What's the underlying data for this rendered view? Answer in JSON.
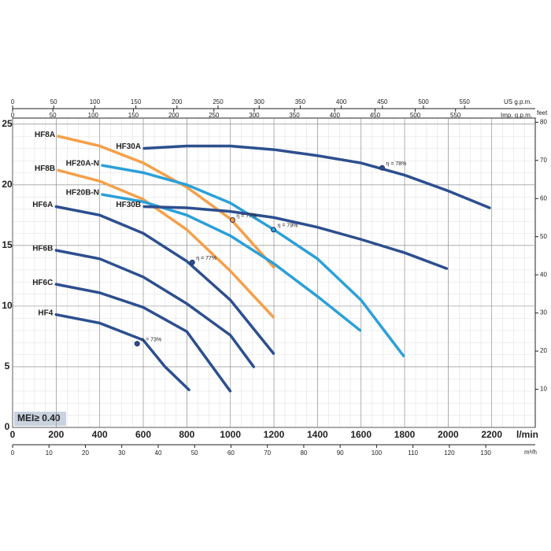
{
  "chart_data": {
    "type": "line",
    "x_label": "l/min",
    "xlim": [
      0,
      2400
    ],
    "xticks": [
      0,
      200,
      400,
      600,
      800,
      1000,
      1200,
      1400,
      1600,
      1800,
      2000,
      2200
    ],
    "ylim": [
      0,
      25.5
    ],
    "yticks": [
      0,
      5,
      10,
      15,
      20,
      25
    ],
    "y2_label": "feet",
    "y2lim": [
      0,
      81.1
    ],
    "y2ticks": [
      10,
      20,
      30,
      40,
      50,
      60,
      70,
      80
    ],
    "top_axes": [
      {
        "label": "US g.p.m.",
        "xlim": [
          0,
          636
        ],
        "xticks": [
          0,
          50,
          100,
          150,
          200,
          250,
          300,
          350,
          400,
          450,
          500,
          550
        ]
      },
      {
        "label": "Imp. g.p.m.",
        "xlim": [
          0,
          649
        ],
        "xticks": [
          0,
          50,
          100,
          150,
          200,
          250,
          300,
          350,
          400,
          450,
          500,
          550
        ]
      }
    ],
    "bottom_axis2": {
      "label": "m³/h",
      "xlim": [
        0,
        143.6
      ],
      "xticks": [
        0,
        10,
        20,
        30,
        40,
        50,
        60,
        70,
        80,
        90,
        100,
        110,
        120,
        130
      ]
    },
    "grid": true,
    "series": [
      {
        "name": "HF8A",
        "color": "#f4a04a",
        "x": [
          210,
          400,
          600,
          800,
          1000,
          1200
        ],
        "values": [
          24.0,
          23.2,
          21.8,
          19.8,
          17.2,
          13.2
        ]
      },
      {
        "name": "HF8B",
        "color": "#f4a04a",
        "x": [
          210,
          400,
          600,
          800,
          1000,
          1197
        ],
        "values": [
          21.2,
          20.3,
          18.8,
          16.3,
          12.9,
          9.1
        ]
      },
      {
        "name": "HF20A-N",
        "color": "#2ca0d8",
        "x": [
          412,
          600,
          800,
          1000,
          1200,
          1400,
          1600,
          1795
        ],
        "values": [
          21.6,
          21.0,
          20.0,
          18.5,
          16.3,
          13.9,
          10.5,
          5.9
        ]
      },
      {
        "name": "HF20B-N",
        "color": "#2ca0d8",
        "x": [
          412,
          600,
          800,
          1000,
          1200,
          1400,
          1596
        ],
        "values": [
          19.2,
          18.6,
          17.5,
          15.8,
          13.5,
          10.8,
          8.0
        ]
      },
      {
        "name": "HF30A",
        "color": "#2d4f8f",
        "x": [
          604,
          800,
          1000,
          1200,
          1400,
          1600,
          1800,
          2000,
          2190
        ],
        "values": [
          23.0,
          23.2,
          23.2,
          22.9,
          22.4,
          21.8,
          20.8,
          19.5,
          18.1
        ]
      },
      {
        "name": "HF30B",
        "color": "#2d4f8f",
        "x": [
          604,
          800,
          1000,
          1200,
          1400,
          1600,
          1800,
          1993
        ],
        "values": [
          18.2,
          18.1,
          17.8,
          17.3,
          16.5,
          15.5,
          14.4,
          13.1
        ]
      },
      {
        "name": "HF6A",
        "color": "#2d4f8f",
        "x": [
          200,
          400,
          600,
          800,
          1000,
          1198
        ],
        "values": [
          18.2,
          17.5,
          16.0,
          13.7,
          10.5,
          6.1
        ]
      },
      {
        "name": "HF6B",
        "color": "#2d4f8f",
        "x": [
          200,
          400,
          600,
          800,
          1000,
          1107
        ],
        "values": [
          14.6,
          13.9,
          12.4,
          10.2,
          7.6,
          5.0
        ]
      },
      {
        "name": "HF6C",
        "color": "#2d4f8f",
        "x": [
          200,
          400,
          600,
          800,
          999
        ],
        "values": [
          11.8,
          11.1,
          9.9,
          7.9,
          3.0
        ]
      },
      {
        "name": "HF4",
        "color": "#2d4f8f",
        "x": [
          200,
          400,
          600,
          700,
          810
        ],
        "values": [
          9.3,
          8.6,
          7.2,
          5.0,
          3.1
        ]
      }
    ],
    "markers": [
      {
        "label": "η = 77%",
        "x": 1010,
        "y": 17.1,
        "color": "#f4a04a"
      },
      {
        "label": "η = 79%",
        "x": 1198,
        "y": 16.3,
        "color": "#2ca0d8"
      },
      {
        "label": "η = 77%",
        "x": 825,
        "y": 13.6,
        "color": "#2d4f8f"
      },
      {
        "label": "η = 73%",
        "x": 572,
        "y": 6.9,
        "color": "#2d4f8f"
      },
      {
        "label": "η = 78%",
        "x": 1697,
        "y": 21.4,
        "color": "#2d4f8f"
      }
    ],
    "annotation": "MEI≥ 0.40"
  }
}
